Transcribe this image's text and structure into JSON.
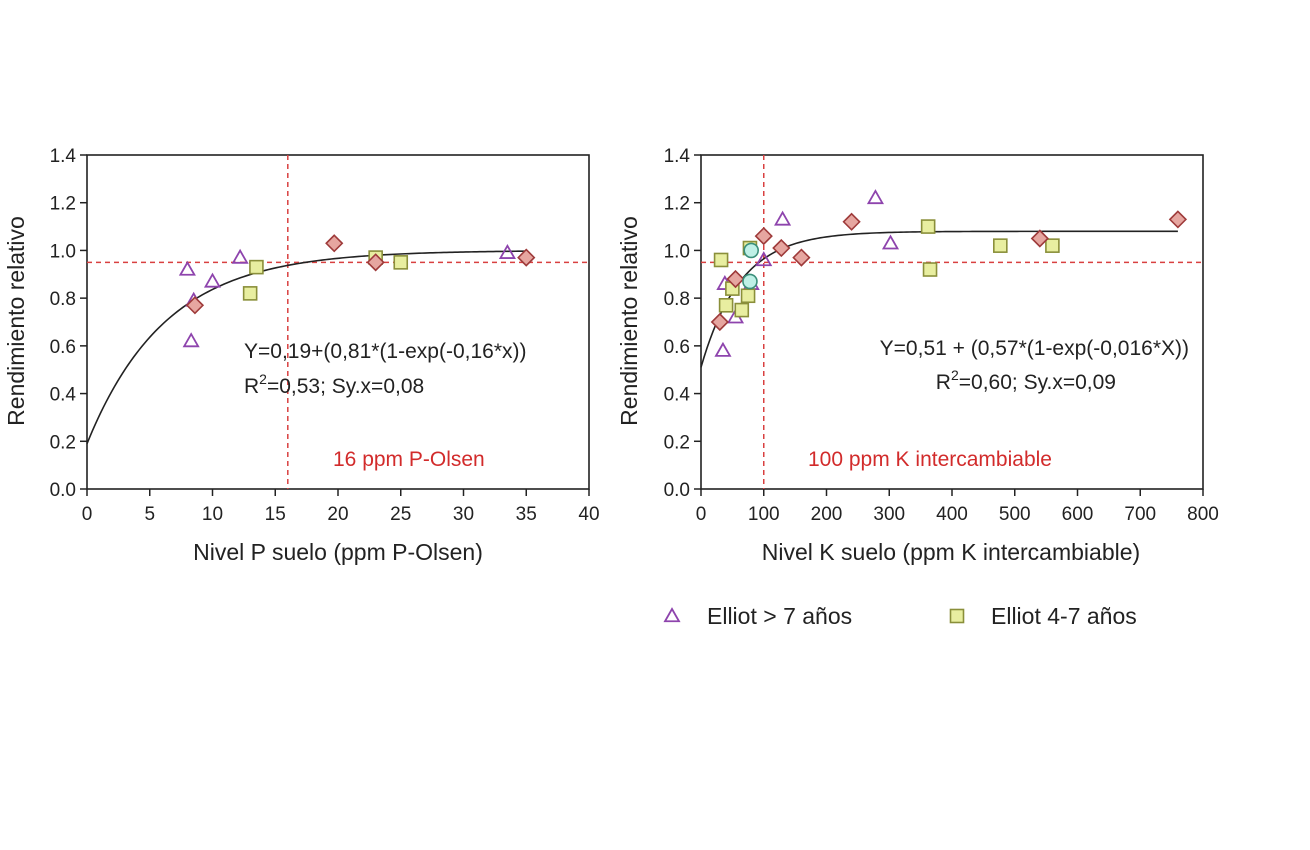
{
  "colors": {
    "threshold": "#d94040",
    "axis": "#222222",
    "fit": "#222222",
    "series_triangle": "#8e44ad",
    "series_square_fill": "#e8eea0",
    "series_square_stroke": "#8a8f3a",
    "series_diamond_fill": "#e6a6a0",
    "series_diamond_stroke": "#9e3a3a",
    "series_circle_fill": "#bff0e6",
    "series_circle_stroke": "#3a8f7a"
  },
  "chart_data": [
    {
      "type": "scatter",
      "xlabel": "Nivel P suelo (ppm P-Olsen)",
      "ylabel": "Rendimiento relativo",
      "xlim": [
        0,
        40
      ],
      "ylim": [
        0,
        1.4
      ],
      "xticks": [
        0,
        5,
        10,
        15,
        20,
        25,
        30,
        35,
        40
      ],
      "yticks": [
        0.0,
        0.2,
        0.4,
        0.6,
        0.8,
        1.0,
        1.2,
        1.4
      ],
      "xtick_labels": [
        "0",
        "5",
        "10",
        "15",
        "20",
        "25",
        "30",
        "35",
        "40"
      ],
      "ytick_labels": [
        "0.0",
        "0.2",
        "0.4",
        "0.6",
        "0.8",
        "1.0",
        "1.2",
        "1.4"
      ],
      "equation": "Y=0,19+(0,81*(1-exp(-0,16*x))",
      "r2_prefix": "R",
      "r2_sup": "2",
      "r2_rest": "=0,53; Sy.x=0,08",
      "threshold_label": "16 ppm P-Olsen",
      "threshold_x": 16,
      "threshold_y": 0.95,
      "fit": {
        "a": 0.19,
        "b": 0.81,
        "k": 0.16,
        "x_end": 35
      },
      "series": [
        {
          "name": "Elliot > 7 años",
          "marker": "triangle",
          "points": [
            [
              8,
              0.92
            ],
            [
              8.5,
              0.79
            ],
            [
              8.3,
              0.62
            ],
            [
              10,
              0.87
            ],
            [
              12.2,
              0.97
            ],
            [
              33.5,
              0.99
            ]
          ]
        },
        {
          "name": "Elliot 4-7 años",
          "marker": "square",
          "points": [
            [
              13,
              0.82
            ],
            [
              13.5,
              0.93
            ],
            [
              23,
              0.97
            ],
            [
              25,
              0.95
            ]
          ]
        },
        {
          "marker": "diamond",
          "points": [
            [
              8.6,
              0.77
            ],
            [
              19.7,
              1.03
            ],
            [
              23,
              0.95
            ],
            [
              35,
              0.97
            ]
          ]
        }
      ]
    },
    {
      "type": "scatter",
      "xlabel": "Nivel K suelo (ppm K intercambiable)",
      "ylabel": "Rendimiento relativo",
      "xlim": [
        0,
        800
      ],
      "ylim": [
        0,
        1.4
      ],
      "xticks": [
        0,
        100,
        200,
        300,
        400,
        500,
        600,
        700,
        800
      ],
      "yticks": [
        0.0,
        0.2,
        0.4,
        0.6,
        0.8,
        1.0,
        1.2,
        1.4
      ],
      "xtick_labels": [
        "0",
        "100",
        "200",
        "300",
        "400",
        "500",
        "600",
        "700",
        "800"
      ],
      "ytick_labels": [
        "0.0",
        "0.2",
        "0.4",
        "0.6",
        "0.8",
        "1.0",
        "1.2",
        "1.4"
      ],
      "equation": "Y=0,51 + (0,57*(1-exp(-0,016*X))",
      "r2_prefix": "R",
      "r2_sup": "2",
      "r2_rest": "=0,60; Sy.x=0,09",
      "threshold_label": "100 ppm K intercambiable",
      "threshold_x": 100,
      "threshold_y": 0.95,
      "fit": {
        "a": 0.51,
        "b": 0.57,
        "k": 0.016,
        "x_end": 760
      },
      "series": [
        {
          "name": "Elliot > 7 años",
          "marker": "triangle",
          "points": [
            [
              38,
              0.86
            ],
            [
              35,
              0.58
            ],
            [
              55,
              0.72
            ],
            [
              80,
              0.86
            ],
            [
              100,
              0.96
            ],
            [
              130,
              1.13
            ],
            [
              278,
              1.22
            ],
            [
              302,
              1.03
            ]
          ]
        },
        {
          "name": "Elliot 4-7 años",
          "marker": "square",
          "points": [
            [
              32,
              0.96
            ],
            [
              40,
              0.77
            ],
            [
              50,
              0.84
            ],
            [
              65,
              0.75
            ],
            [
              75,
              0.81
            ],
            [
              78,
              1.01
            ],
            [
              362,
              1.1
            ],
            [
              365,
              0.92
            ],
            [
              477,
              1.02
            ],
            [
              560,
              1.02
            ]
          ]
        },
        {
          "marker": "diamond",
          "points": [
            [
              30,
              0.7
            ],
            [
              55,
              0.88
            ],
            [
              100,
              1.06
            ],
            [
              128,
              1.01
            ],
            [
              160,
              0.97
            ],
            [
              240,
              1.12
            ],
            [
              540,
              1.05
            ],
            [
              760,
              1.13
            ]
          ]
        },
        {
          "marker": "circle",
          "points": [
            [
              80,
              1.0
            ],
            [
              78,
              0.87
            ]
          ]
        }
      ]
    }
  ],
  "legend": [
    {
      "label": "Elliot > 7 años",
      "marker": "triangle"
    },
    {
      "label": "Elliot 4-7 años",
      "marker": "square"
    }
  ]
}
